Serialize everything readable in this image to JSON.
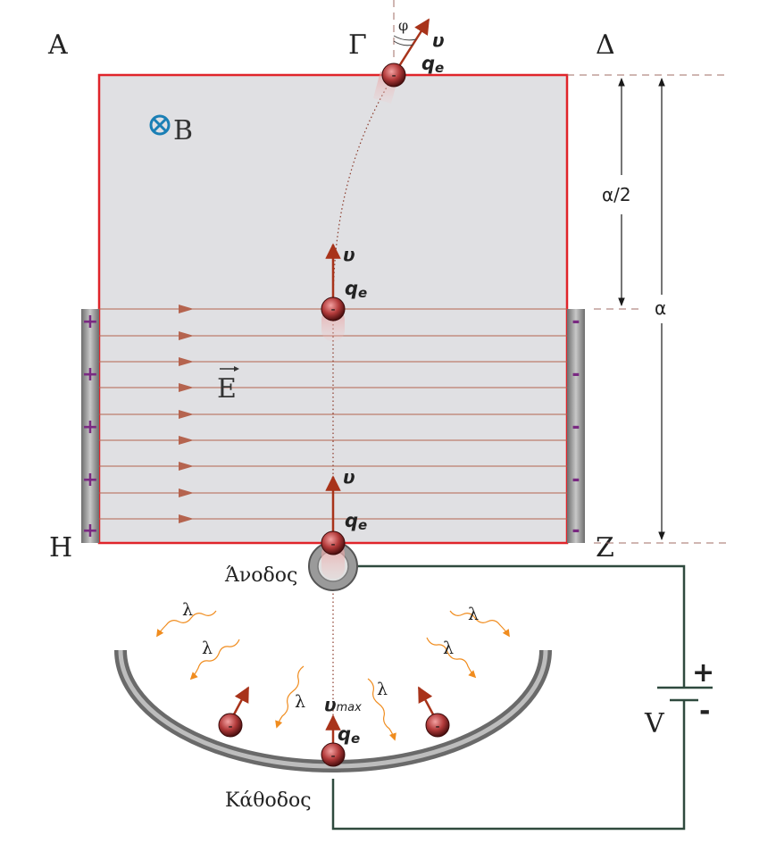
{
  "labels": {
    "corner_A": "Α",
    "corner_Gamma": "Γ",
    "corner_Delta": "Δ",
    "corner_H": "Η",
    "corner_Z": "Ζ",
    "field_B": "B",
    "field_E": "E",
    "dim_half": "α/2",
    "dim_full": "α",
    "anode": "Άνοδος",
    "cathode": "Κάθοδος",
    "voltage": "V",
    "plus": "+",
    "minus": "-",
    "angle": "φ",
    "velocity": "υ",
    "velocity_max": "υ",
    "velocity_max_sub": "max",
    "charge": "q",
    "charge_sub": "e",
    "photon": "λ",
    "electron_sign": "-"
  },
  "colors": {
    "region_fill": "#e0e0e3",
    "region_border": "#e0242a",
    "field_line": "#b5644f",
    "velocity_arrow": "#a8331a",
    "photon": "#f08c1e",
    "circuit_wire": "#2f4a3e",
    "plate_positive_sign": "#7a2a82",
    "b_symbol": "#1a7fb5",
    "dashed_guide": "#a06c66"
  }
}
